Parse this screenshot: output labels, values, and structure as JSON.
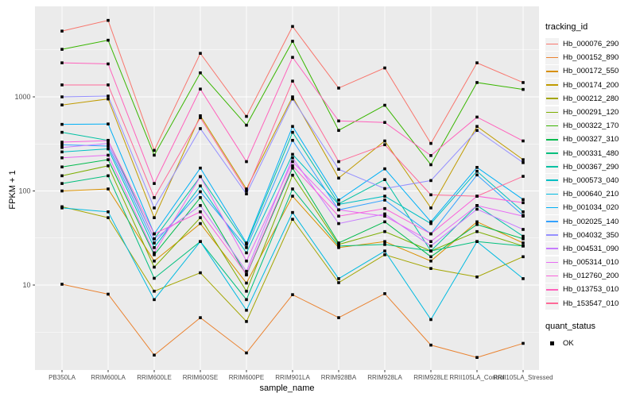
{
  "figure": {
    "background": "#FFFFFF",
    "panel_background": "#EBEBEB",
    "gridline_color": "#FFFFFF",
    "axis_text_color": "#4D4D4D",
    "tick_mark_color": "#333333",
    "point_color": "#000000",
    "legend_key_background": "#F2F2F2"
  },
  "legend": {
    "tracking_title": "tracking_id",
    "quant_title": "quant_status",
    "quant_label": "OK"
  },
  "chart_data": {
    "type": "line",
    "title": "",
    "xlabel": "sample_name",
    "ylabel": "FPKM + 1",
    "y_scale": "log10",
    "ylim": [
      1.5,
      7000
    ],
    "grid": true,
    "legend_position": "right",
    "point_shape": "square",
    "quant_status": "OK",
    "y_major_breaks": [
      10,
      100,
      1000
    ],
    "y_tick_labels": [
      "10",
      "100",
      "1000"
    ],
    "y_minor_breaks": [
      3.162,
      31.62,
      316.2,
      3162
    ],
    "categories": [
      "PB350LA",
      "RRIM600LA",
      "RRIM600LE",
      "RRIM600SE",
      "RRIM600PE",
      "RRIM901LA",
      "RRIM928BA",
      "RRIM928LA",
      "RRIM928LE",
      "RRII105LA_Control",
      "RRII105LA_Stressed"
    ],
    "series": [
      {
        "name": "Hb_000076_290",
        "color": "#F8766D",
        "values": [
          5000,
          6500,
          270,
          2900,
          620,
          5600,
          1240,
          2030,
          320,
          2300,
          1420
        ]
      },
      {
        "name": "Hb_000152_890",
        "color": "#EA8331",
        "values": [
          10.2,
          8.0,
          1.8,
          4.5,
          1.9,
          7.9,
          4.5,
          8.1,
          2.3,
          1.7,
          2.4
        ]
      },
      {
        "name": "Hb_000172_550",
        "color": "#D89000",
        "values": [
          100,
          105,
          18,
          45,
          10.5,
          88,
          25,
          29,
          18,
          47,
          28
        ]
      },
      {
        "name": "Hb_000174_200",
        "color": "#C09B00",
        "values": [
          820,
          950,
          52,
          630,
          105,
          1000,
          137,
          340,
          66,
          485,
          215
        ]
      },
      {
        "name": "Hb_000212_280",
        "color": "#A3A500",
        "values": [
          68,
          52,
          8.6,
          13.5,
          4.1,
          50,
          10.6,
          21,
          15,
          12.2,
          20
        ]
      },
      {
        "name": "Hb_000291_120",
        "color": "#7CAE00",
        "values": [
          145,
          185,
          15.5,
          52,
          8.6,
          147,
          27,
          37,
          23,
          37,
          26
        ]
      },
      {
        "name": "Hb_000322_170",
        "color": "#39B600",
        "values": [
          3200,
          4000,
          240,
          1800,
          500,
          3900,
          440,
          815,
          190,
          1420,
          1200
        ]
      },
      {
        "name": "Hb_000327_310",
        "color": "#00BB4E",
        "values": [
          180,
          215,
          21,
          85,
          12.8,
          175,
          28,
          47,
          20,
          44,
          31
        ]
      },
      {
        "name": "Hb_000331_480",
        "color": "#00BF7D",
        "values": [
          120,
          145,
          11.8,
          29,
          7.0,
          105,
          26,
          27,
          23,
          29,
          26
        ]
      },
      {
        "name": "Hb_000367_290",
        "color": "#00C1A3",
        "values": [
          420,
          345,
          31,
          142,
          27,
          420,
          73,
          132,
          23,
          70,
          33
        ]
      },
      {
        "name": "Hb_000573_040",
        "color": "#00BFC4",
        "values": [
          260,
          280,
          25,
          113,
          22,
          245,
          72,
          88,
          45,
          162,
          60
        ]
      },
      {
        "name": "Hb_000640_210",
        "color": "#00BAE0",
        "values": [
          66,
          60,
          7.0,
          29,
          5.4,
          59,
          11.7,
          23,
          4.3,
          29,
          11.7
        ]
      },
      {
        "name": "Hb_001034_020",
        "color": "#00B0F6",
        "values": [
          510,
          515,
          35,
          175,
          28,
          485,
          80,
          172,
          47,
          178,
          81
        ]
      },
      {
        "name": "Hb_002025_140",
        "color": "#35A2FF",
        "values": [
          310,
          300,
          28,
          98,
          25,
          345,
          63,
          80,
          35,
          148,
          55
        ]
      },
      {
        "name": "Hb_004032_350",
        "color": "#9590FF",
        "values": [
          1000,
          1020,
          66,
          460,
          93,
          950,
          170,
          106,
          129,
          440,
          200
        ]
      },
      {
        "name": "Hb_004531_090",
        "color": "#C77CFF",
        "values": [
          290,
          320,
          31,
          70,
          14,
          225,
          45,
          57,
          26,
          64,
          39
        ]
      },
      {
        "name": "Hb_005314_010",
        "color": "#E76BF3",
        "values": [
          225,
          240,
          22,
          142,
          18,
          205,
          63,
          54,
          29,
          70,
          54
        ]
      },
      {
        "name": "Hb_012760_200",
        "color": "#FA62DB",
        "values": [
          330,
          343,
          35,
          60,
          13,
          185,
          54,
          65,
          35,
          88,
          75
        ]
      },
      {
        "name": "Hb_013753_010",
        "color": "#FF62BC",
        "values": [
          2300,
          2240,
          120,
          1210,
          205,
          2630,
          555,
          535,
          238,
          610,
          340
        ]
      },
      {
        "name": "Hb_153547_010",
        "color": "#FF6A98",
        "values": [
          1340,
          1340,
          85,
          600,
          100,
          1470,
          205,
          310,
          91,
          88,
          143
        ]
      }
    ]
  }
}
